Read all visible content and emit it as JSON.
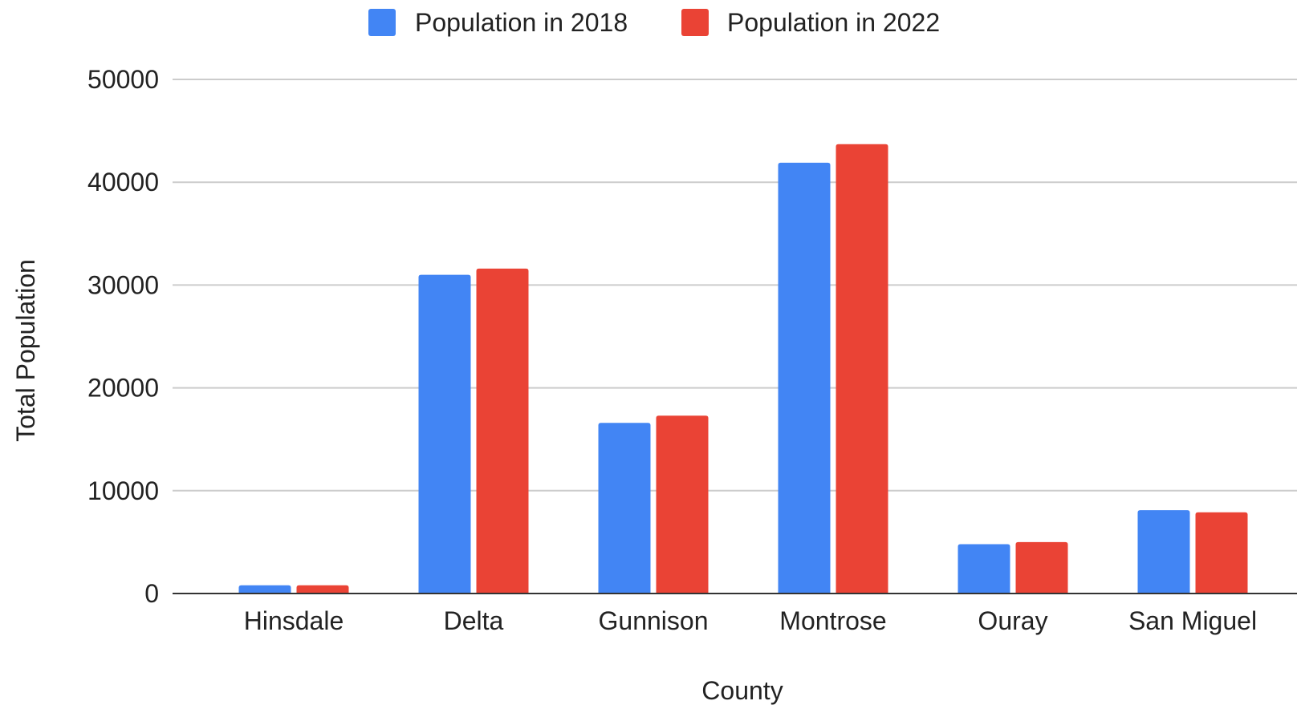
{
  "chart_data": {
    "type": "bar",
    "title": "",
    "xlabel": "County",
    "ylabel": "Total Population",
    "categories": [
      "Hinsdale",
      "Delta",
      "Gunnison",
      "Montrose",
      "Ouray",
      "San Miguel"
    ],
    "series": [
      {
        "name": "Population in 2018",
        "color": "#4285f4",
        "values": [
          800,
          31000,
          16600,
          41900,
          4800,
          8100
        ]
      },
      {
        "name": "Population in 2022",
        "color": "#ea4335",
        "values": [
          800,
          31600,
          17300,
          43700,
          5000,
          7900
        ]
      }
    ],
    "ylim": [
      0,
      50000
    ],
    "yticks": [
      "0",
      "10000",
      "20000",
      "30000",
      "40000",
      "50000"
    ],
    "grid": true,
    "legend_position": "top-center",
    "colors": {
      "gridline": "#cccccc",
      "baseline": "#333333",
      "text": "#222222"
    }
  }
}
